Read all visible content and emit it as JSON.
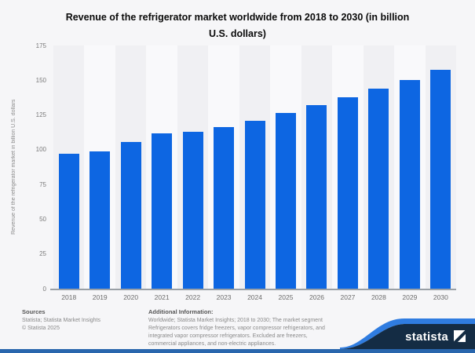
{
  "header": {
    "title_line1": "Revenue of the refrigerator market worldwide from 2018 to 2030 (in billion",
    "title_line2": "U.S. dollars)"
  },
  "chart_data": {
    "type": "bar",
    "title": "Revenue of the refrigerator market worldwide from 2018 to 2030 (in billion U.S. dollars)",
    "categories": [
      "2018",
      "2019",
      "2020",
      "2021",
      "2022",
      "2023",
      "2024",
      "2025",
      "2026",
      "2027",
      "2028",
      "2029",
      "2030"
    ],
    "values": [
      97,
      99,
      105.8,
      112,
      113,
      116.5,
      121,
      126.3,
      132,
      137.8,
      144,
      150.3,
      157.5
    ],
    "xlabel": "",
    "ylabel": "Revenue of the refrigerator market in billion U.S. dollars",
    "ylim": [
      0,
      175
    ],
    "yticks": [
      0,
      25,
      50,
      75,
      100,
      125,
      150,
      175
    ],
    "grid": "horizontal-dotted",
    "legend": "none",
    "bar_color": "#0d66e2"
  },
  "footer": {
    "sources_heading": "Sources",
    "sources_line": "Statista; Statista Market Insights",
    "copyright": "© Statista 2025",
    "additional_heading": "Additional Information:",
    "additional_lines": [
      "Worldwide; Statista Market Insights; 2018 to 2030; The market segment",
      "Refrigerators covers fridge freezers, vapor compressor refrigerators, and",
      "integrated vapor compressor refrigerators. Excluded are freezers,",
      "commercial appliances, and non-electric appliances."
    ]
  },
  "branding": {
    "wordmark": "statista",
    "navy": "#142c44",
    "swoosh_blue": "#2f7ce0",
    "bottom_bar_blue": "#2966ad"
  }
}
